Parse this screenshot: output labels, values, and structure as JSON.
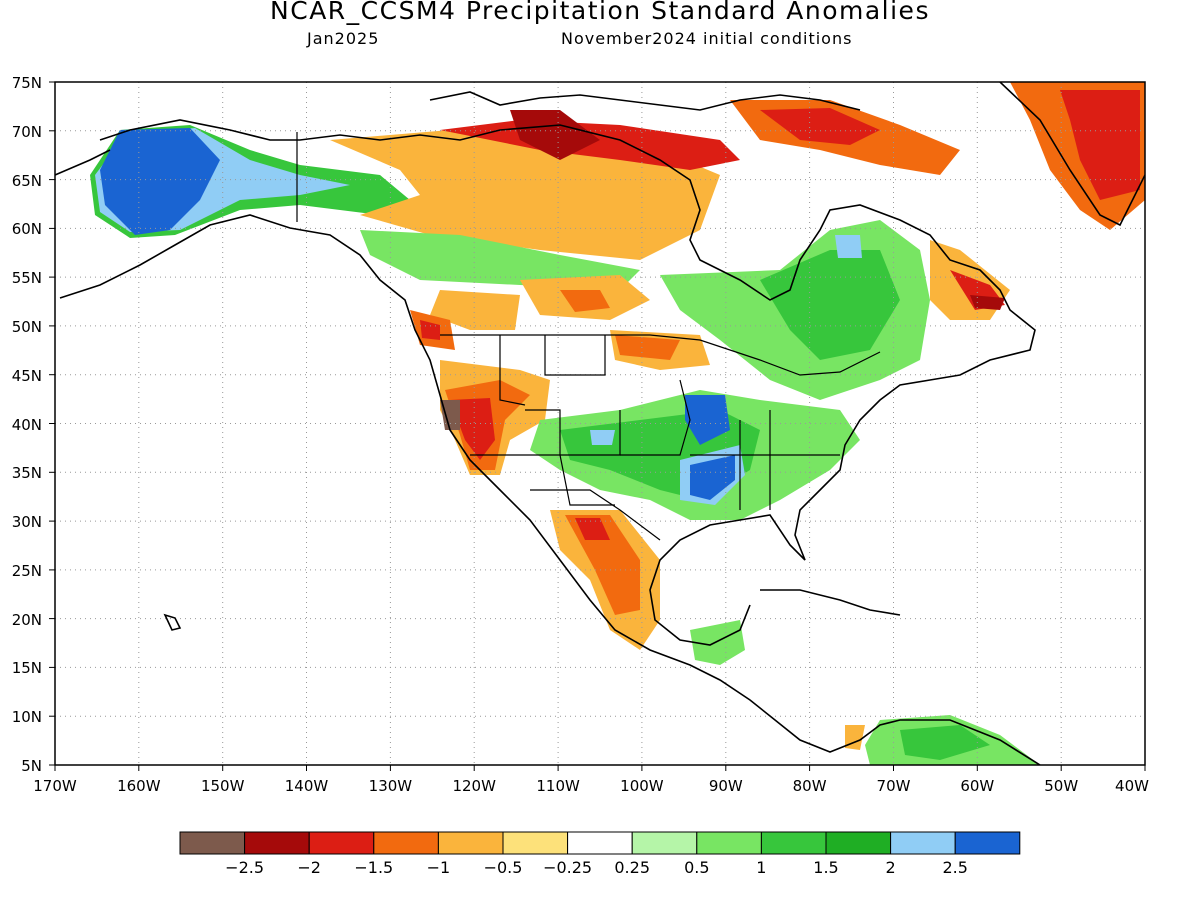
{
  "title": "NCAR_CCSM4 Precipitation Standard Anomalies",
  "subtitle_left": "Jan2025",
  "subtitle_right": "November2024 initial conditions",
  "map": {
    "lon_range": [
      -170,
      -40
    ],
    "lat_range": [
      5,
      75
    ],
    "grid": "dotted",
    "lat_ticks": [
      "75N",
      "70N",
      "65N",
      "60N",
      "55N",
      "50N",
      "45N",
      "40N",
      "35N",
      "30N",
      "25N",
      "20N",
      "15N",
      "10N",
      "5N"
    ],
    "lon_ticks": [
      "170W",
      "160W",
      "150W",
      "140W",
      "130W",
      "120W",
      "110W",
      "100W",
      "90W",
      "80W",
      "70W",
      "60W",
      "50W",
      "40W"
    ]
  },
  "legend": {
    "colors": [
      "#7d5a4c",
      "#a50a0a",
      "#dc1e14",
      "#f26a0f",
      "#fab43c",
      "#fde17a",
      "#ffffff",
      "#b5f5a8",
      "#78e563",
      "#37c63c",
      "#1fae24",
      "#90cdf5",
      "#1a64d2"
    ],
    "labels": [
      "−2.5",
      "−2",
      "−1.5",
      "−1",
      "−0.5",
      "−0.25",
      "0.25",
      "0.5",
      "1",
      "1.5",
      "2",
      "2.5"
    ]
  }
}
